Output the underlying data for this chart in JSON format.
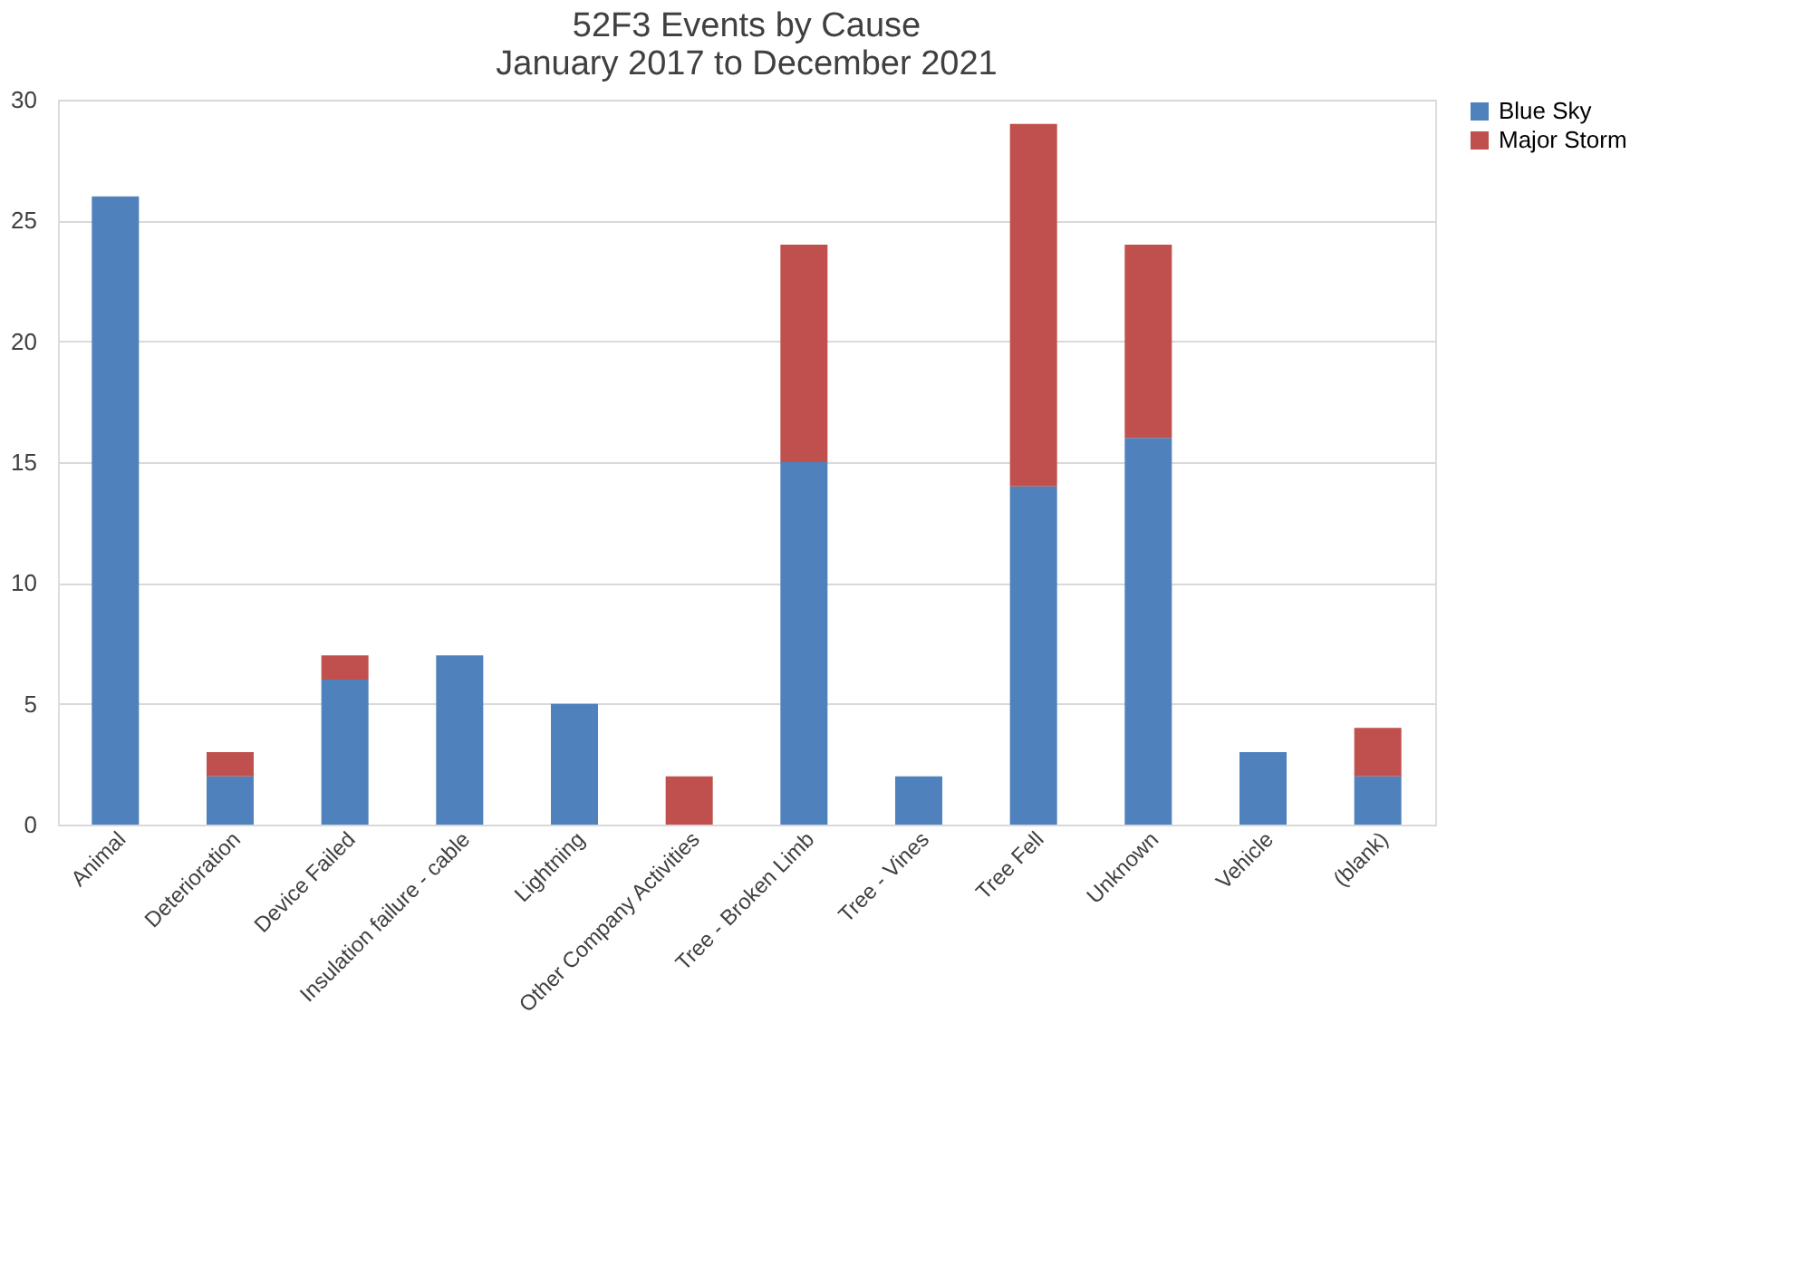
{
  "chart_data": {
    "type": "bar",
    "title": "52F3 Events by Cause\nJanuary 2017 to December 2021",
    "categories": [
      "Animal",
      "Deterioration",
      "Device Failed",
      "Insulation failure - cable",
      "Lightning",
      "Other Company Activities",
      "Tree - Broken Limb",
      "Tree - Vines",
      "Tree Fell",
      "Unknown",
      "Vehicle",
      "(blank)"
    ],
    "series": [
      {
        "name": "Blue Sky",
        "color": "#4f81bd",
        "values": [
          26,
          2,
          6,
          7,
          5,
          0,
          15,
          2,
          14,
          16,
          3,
          2
        ]
      },
      {
        "name": "Major Storm",
        "color": "#c0504d",
        "values": [
          0,
          1,
          1,
          0,
          0,
          2,
          9,
          0,
          15,
          8,
          0,
          2
        ]
      }
    ],
    "stacked": true,
    "ylim": [
      0,
      30
    ],
    "yticks": [
      0,
      5,
      10,
      15,
      20,
      25,
      30
    ],
    "grid": "y",
    "legend": "right"
  }
}
